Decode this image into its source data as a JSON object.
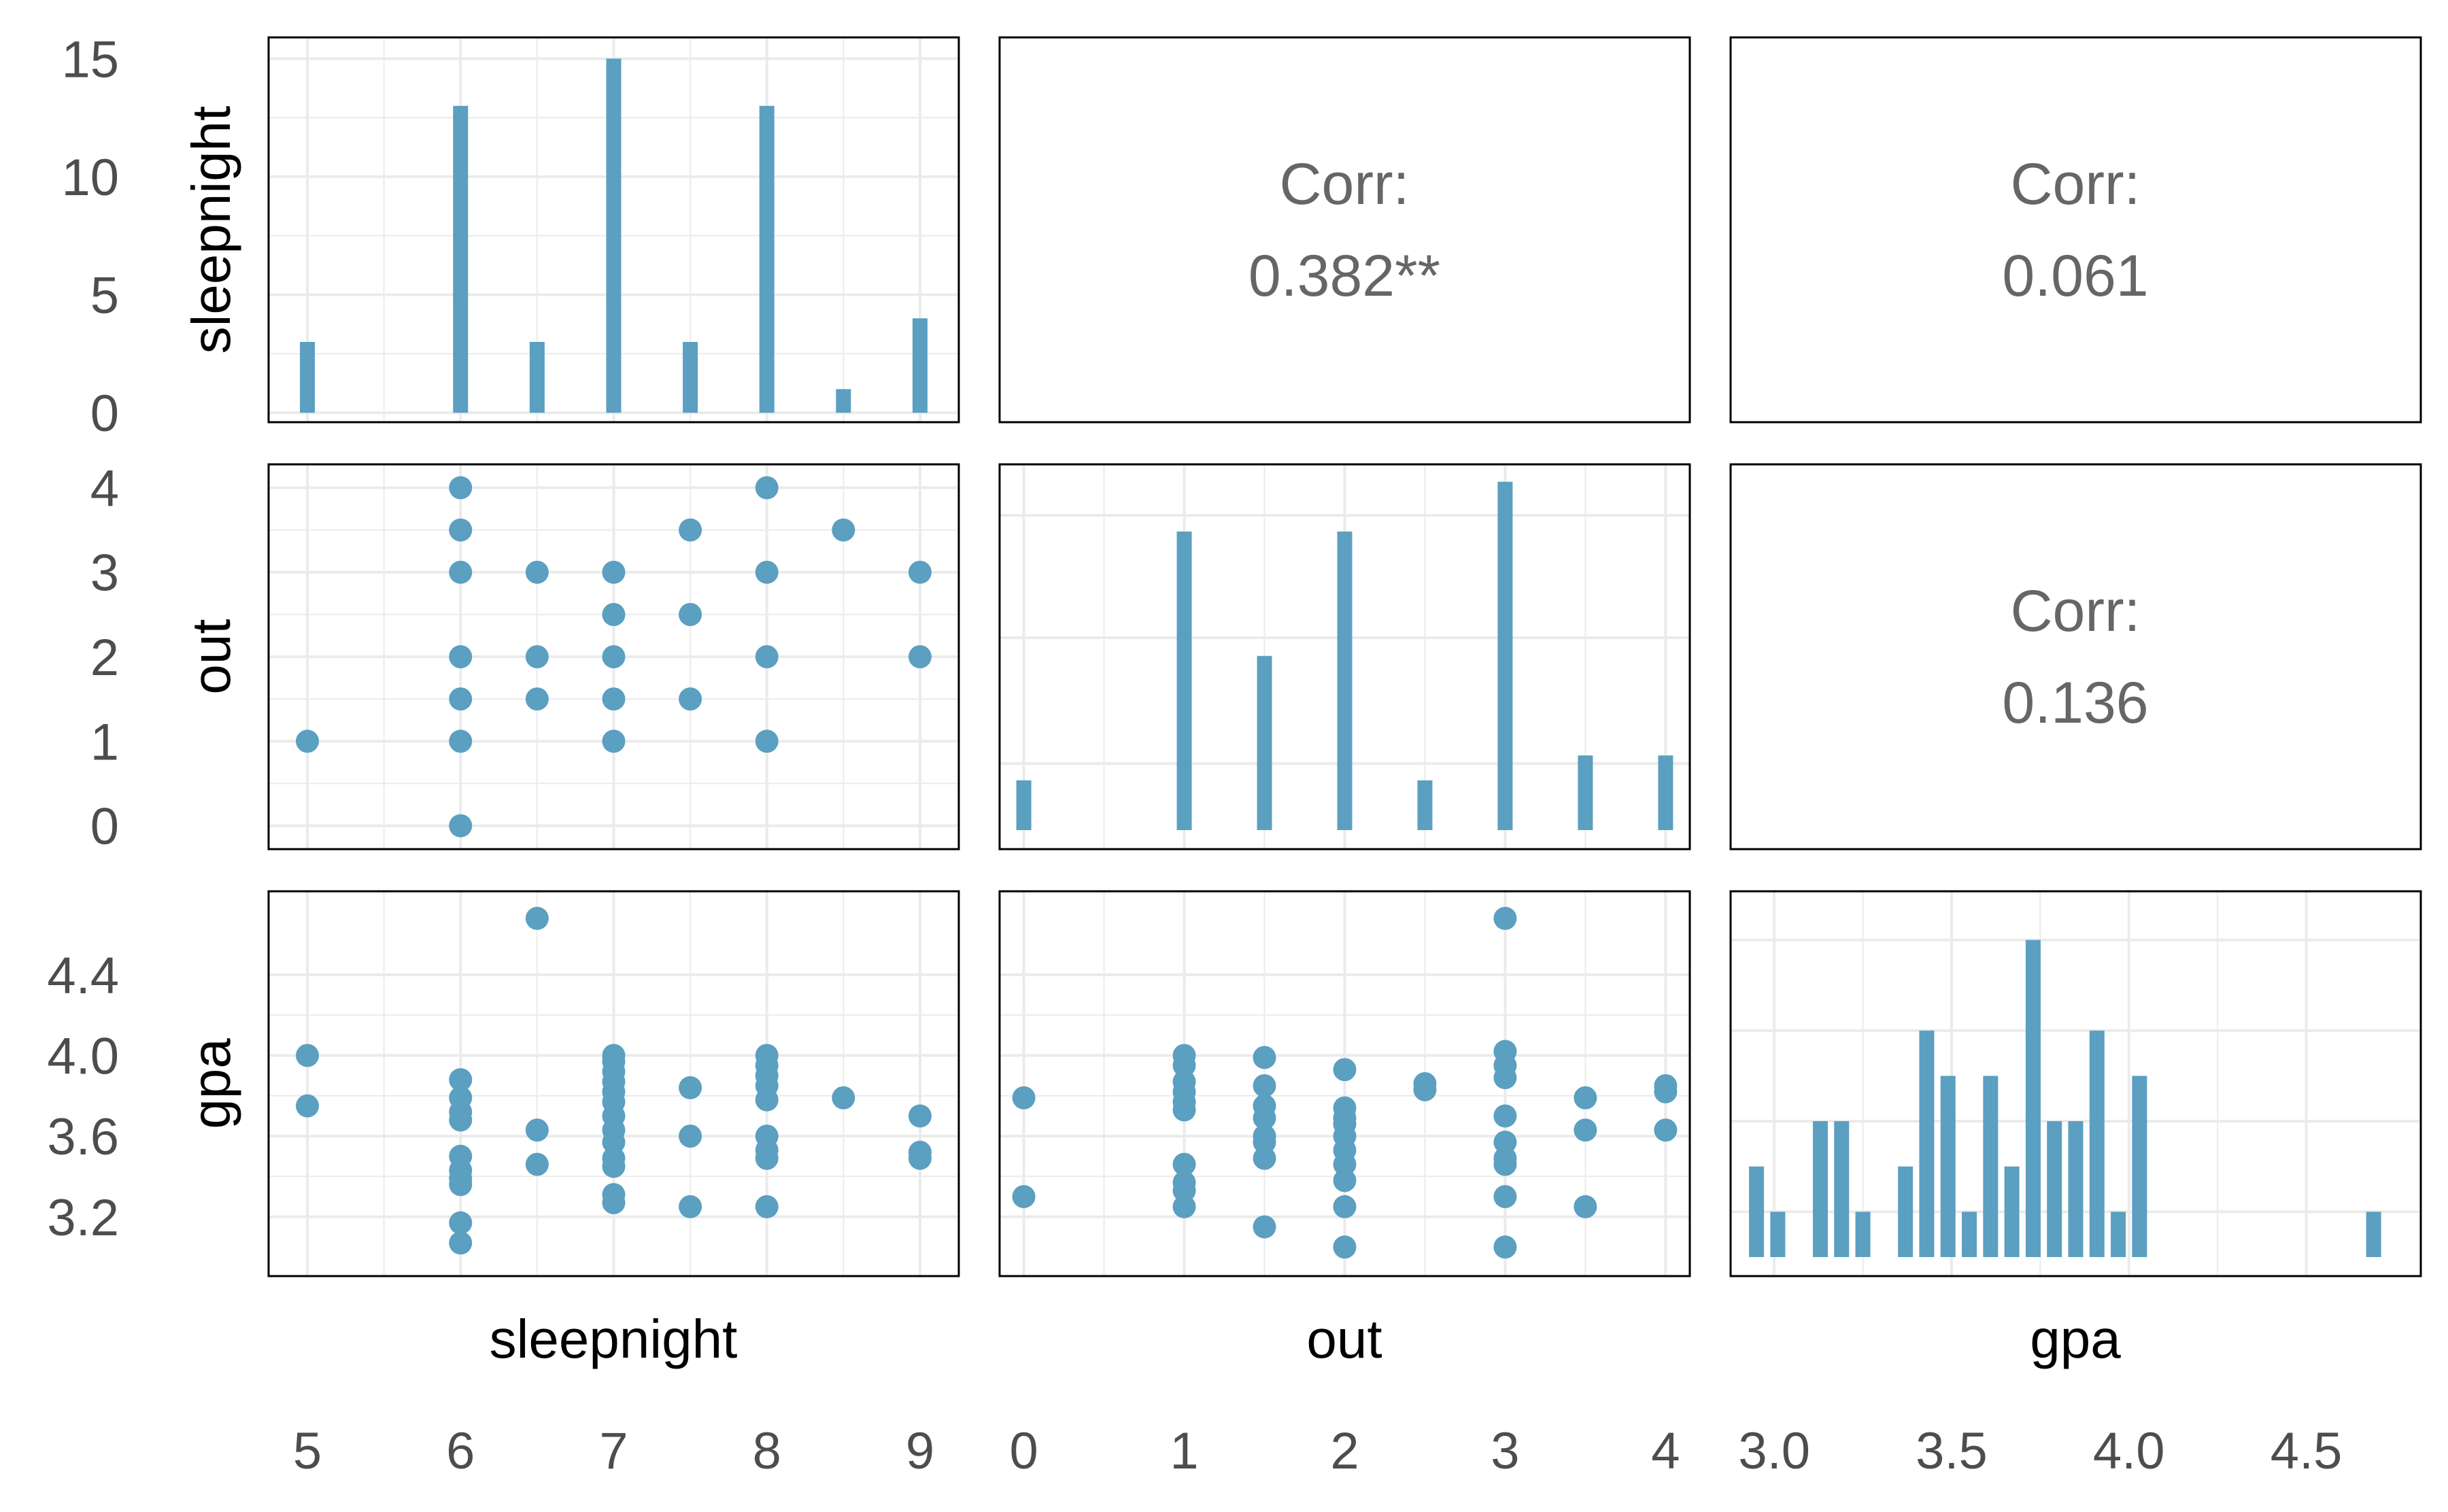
{
  "chart_data": {
    "type": "scatter",
    "subtype": "pairs-plot-matrix",
    "variables": [
      "sleepnight",
      "out",
      "gpa"
    ],
    "accent_color": "#5b9fc1",
    "grid": true,
    "axes": {
      "sleepnight": {
        "range": [
          4.8,
          9.2
        ],
        "ticks": [
          "5",
          "6",
          "7",
          "8",
          "9"
        ],
        "tick_values": [
          5,
          6,
          7,
          8,
          9
        ]
      },
      "out": {
        "range": [
          -0.1,
          4.1
        ],
        "ticks": [
          "0",
          "1",
          "2",
          "3",
          "4"
        ],
        "tick_values": [
          0,
          1,
          2,
          3,
          4
        ]
      },
      "gpa": {
        "range": [
          2.9,
          4.8
        ],
        "ticks": [
          "3.0",
          "3.5",
          "4.0",
          "4.5"
        ],
        "tick_values": [
          3.0,
          3.5,
          4.0,
          4.5
        ]
      }
    },
    "row_axes": {
      "sleepnight": {
        "ticks": [
          "0",
          "5",
          "10",
          "15"
        ],
        "tick_values": [
          0,
          5,
          10,
          15
        ],
        "range": [
          -0.4,
          15.9
        ]
      },
      "out": {
        "ticks": [
          "0",
          "1",
          "2",
          "3",
          "4"
        ],
        "tick_values": [
          0,
          1,
          2,
          3,
          4
        ]
      },
      "gpa": {
        "ticks": [
          "3.2",
          "3.6",
          "4.0",
          "4.4"
        ],
        "tick_values": [
          3.2,
          3.6,
          4.0,
          4.4
        ]
      }
    },
    "histograms": {
      "sleepnight": {
        "x": [
          5,
          6,
          6.5,
          7,
          7.5,
          8,
          8.5,
          9
        ],
        "counts": [
          3,
          13,
          3,
          15,
          3,
          13,
          1,
          4
        ]
      },
      "out": {
        "x": [
          0,
          1,
          1.5,
          2,
          2.5,
          3,
          3.5,
          4
        ],
        "counts": [
          2,
          12,
          7,
          12,
          2,
          14,
          3,
          3
        ]
      },
      "gpa": {
        "x": [
          2.95,
          3.01,
          3.13,
          3.19,
          3.25,
          3.37,
          3.43,
          3.49,
          3.55,
          3.61,
          3.67,
          3.73,
          3.79,
          3.85,
          3.91,
          3.97,
          4.03,
          4.69
        ],
        "counts": [
          1,
          0.5,
          1.5,
          1.5,
          0.5,
          1,
          2.5,
          2,
          0.5,
          2,
          1,
          3.5,
          1.5,
          1.5,
          2.5,
          0.5,
          2,
          0.5
        ],
        "max_count": 4
      }
    },
    "correlations": [
      {
        "x": "sleepnight",
        "y": "out",
        "label": "Corr:",
        "value": "0.382**"
      },
      {
        "x": "sleepnight",
        "y": "gpa",
        "label": "Corr:",
        "value": "0.061"
      },
      {
        "x": "out",
        "y": "gpa",
        "label": "Corr:",
        "value": "0.136"
      }
    ],
    "scatter_sleepnight_out": [
      [
        5,
        1
      ],
      [
        6,
        4
      ],
      [
        6,
        3.5
      ],
      [
        6,
        3
      ],
      [
        6,
        2
      ],
      [
        6,
        1.5
      ],
      [
        6,
        1
      ],
      [
        6,
        0
      ],
      [
        6.5,
        3
      ],
      [
        6.5,
        2
      ],
      [
        6.5,
        1.5
      ],
      [
        7,
        3
      ],
      [
        7,
        2.5
      ],
      [
        7,
        2
      ],
      [
        7,
        1.5
      ],
      [
        7,
        1
      ],
      [
        7.5,
        3.5
      ],
      [
        7.5,
        2.5
      ],
      [
        7.5,
        1.5
      ],
      [
        8,
        4
      ],
      [
        8,
        3
      ],
      [
        8,
        2
      ],
      [
        8,
        1
      ],
      [
        8.5,
        3.5
      ],
      [
        9,
        3
      ],
      [
        9,
        2
      ]
    ],
    "scatter_sleepnight_gpa": [
      [
        5,
        4.0
      ],
      [
        5,
        3.75
      ],
      [
        6,
        3.88
      ],
      [
        6,
        3.79
      ],
      [
        6,
        3.72
      ],
      [
        6,
        3.68
      ],
      [
        6,
        3.5
      ],
      [
        6,
        3.43
      ],
      [
        6,
        3.39
      ],
      [
        6,
        3.36
      ],
      [
        6,
        3.17
      ],
      [
        6,
        3.07
      ],
      [
        6.5,
        4.68
      ],
      [
        6.5,
        3.63
      ],
      [
        6.5,
        3.46
      ],
      [
        7,
        4.0
      ],
      [
        7,
        3.97
      ],
      [
        7,
        3.92
      ],
      [
        7,
        3.87
      ],
      [
        7,
        3.82
      ],
      [
        7,
        3.77
      ],
      [
        7,
        3.7
      ],
      [
        7,
        3.63
      ],
      [
        7,
        3.57
      ],
      [
        7,
        3.49
      ],
      [
        7,
        3.45
      ],
      [
        7,
        3.31
      ],
      [
        7,
        3.27
      ],
      [
        7.5,
        3.84
      ],
      [
        7.5,
        3.6
      ],
      [
        7.5,
        3.25
      ],
      [
        8,
        4.0
      ],
      [
        8,
        3.95
      ],
      [
        8,
        3.9
      ],
      [
        8,
        3.85
      ],
      [
        8,
        3.78
      ],
      [
        8,
        3.6
      ],
      [
        8,
        3.53
      ],
      [
        8,
        3.49
      ],
      [
        8,
        3.25
      ],
      [
        8.5,
        3.79
      ],
      [
        9,
        3.7
      ],
      [
        9,
        3.52
      ],
      [
        9,
        3.49
      ]
    ],
    "scatter_out_gpa": [
      [
        0,
        3.79
      ],
      [
        0,
        3.3
      ],
      [
        1,
        4.0
      ],
      [
        1,
        3.95
      ],
      [
        1,
        3.87
      ],
      [
        1,
        3.82
      ],
      [
        1,
        3.77
      ],
      [
        1,
        3.73
      ],
      [
        1,
        3.46
      ],
      [
        1,
        3.37
      ],
      [
        1,
        3.33
      ],
      [
        1,
        3.25
      ],
      [
        1.5,
        3.99
      ],
      [
        1.5,
        3.85
      ],
      [
        1.5,
        3.75
      ],
      [
        1.5,
        3.69
      ],
      [
        1.5,
        3.6
      ],
      [
        1.5,
        3.57
      ],
      [
        1.5,
        3.49
      ],
      [
        1.5,
        3.15
      ],
      [
        2,
        3.93
      ],
      [
        2,
        3.74
      ],
      [
        2,
        3.69
      ],
      [
        2,
        3.66
      ],
      [
        2,
        3.6
      ],
      [
        2,
        3.53
      ],
      [
        2,
        3.46
      ],
      [
        2,
        3.38
      ],
      [
        2,
        3.25
      ],
      [
        2,
        3.05
      ],
      [
        2.5,
        3.86
      ],
      [
        2.5,
        3.83
      ],
      [
        3,
        4.68
      ],
      [
        3,
        4.02
      ],
      [
        3,
        3.95
      ],
      [
        3,
        3.89
      ],
      [
        3,
        3.7
      ],
      [
        3,
        3.57
      ],
      [
        3,
        3.49
      ],
      [
        3,
        3.46
      ],
      [
        3,
        3.3
      ],
      [
        3,
        3.05
      ],
      [
        3.5,
        3.79
      ],
      [
        3.5,
        3.63
      ],
      [
        3.5,
        3.25
      ],
      [
        4,
        3.85
      ],
      [
        4,
        3.82
      ],
      [
        4,
        3.63
      ]
    ]
  }
}
